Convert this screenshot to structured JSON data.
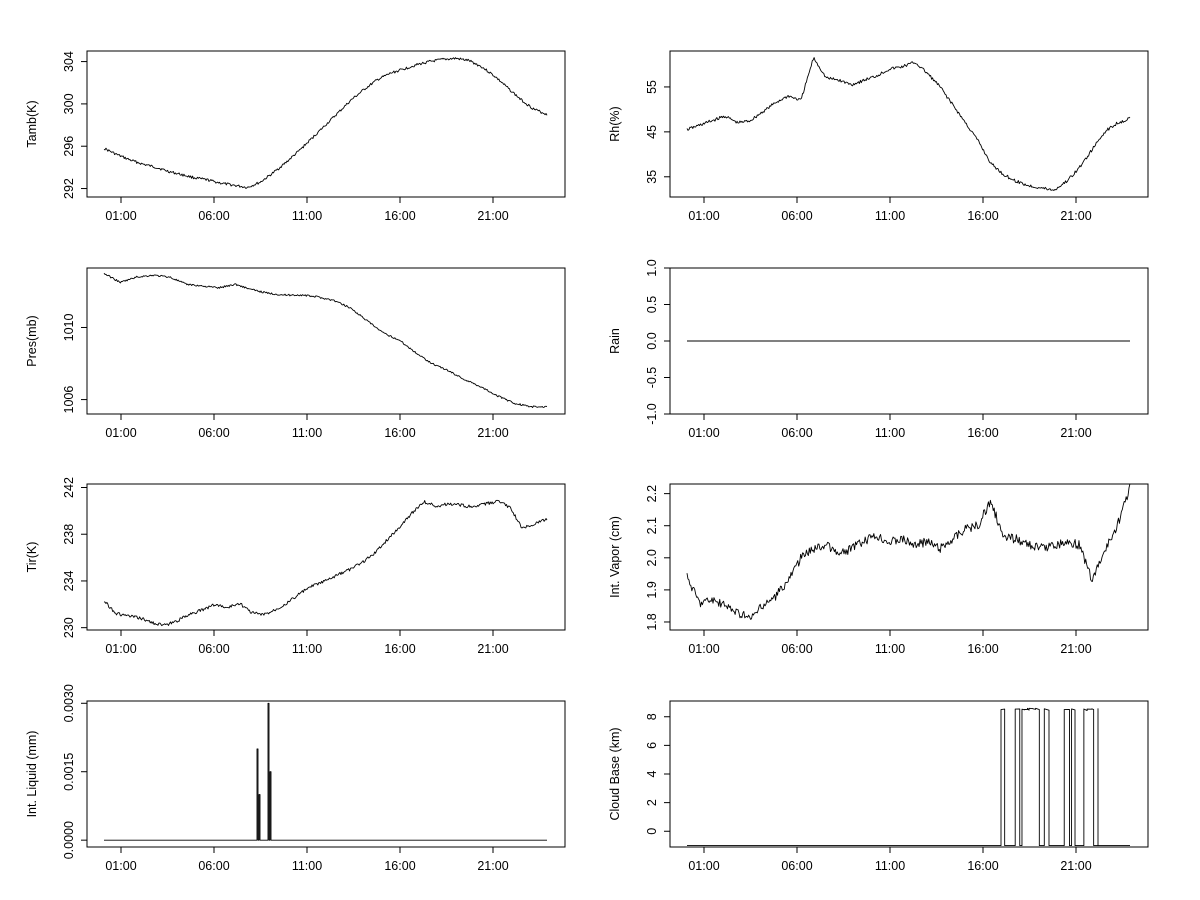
{
  "chart_data": [
    {
      "type": "line",
      "ylabel": "Tamb(K)",
      "xticks": [
        "01:00",
        "06:00",
        "11:00",
        "16:00",
        "21:00"
      ],
      "yticks": [
        "292",
        "296",
        "300",
        "304"
      ],
      "ylim": [
        291.2,
        305
      ],
      "series": [
        {
          "values": [
            295.8,
            295.2,
            294.7,
            294.3,
            294.0,
            293.6,
            293.3,
            293.0,
            292.8,
            292.5,
            292.3,
            292.1,
            292.6,
            293.5,
            294.5,
            295.6,
            296.8,
            298.0,
            299.2,
            300.4,
            301.4,
            302.3,
            302.9,
            303.3,
            303.7,
            304.0,
            304.2,
            304.3,
            304.1,
            303.5,
            302.6,
            301.5,
            300.4,
            299.5,
            299.0
          ]
        }
      ]
    },
    {
      "type": "line",
      "ylabel": "Rh(%)",
      "xticks": [
        "01:00",
        "06:00",
        "11:00",
        "16:00",
        "21:00"
      ],
      "yticks": [
        "35",
        "45",
        "55"
      ],
      "ylim": [
        30.5,
        63
      ],
      "series": [
        {
          "values": [
            45.5,
            46.5,
            47.5,
            48.5,
            47.0,
            47.5,
            49.5,
            51.5,
            53.0,
            52.0,
            61.5,
            57.0,
            56.5,
            55.5,
            56.5,
            57.5,
            59.0,
            59.5,
            60.5,
            58.0,
            55.0,
            51.0,
            47.0,
            43.0,
            38.0,
            35.5,
            34.0,
            33.0,
            32.5,
            32.0,
            34.0,
            37.0,
            41.0,
            45.0,
            47.0,
            48.0
          ]
        }
      ]
    },
    {
      "type": "line",
      "ylabel": "Pres(mb)",
      "xticks": [
        "01:00",
        "06:00",
        "11:00",
        "16:00",
        "21:00"
      ],
      "yticks": [
        "1006",
        "1010"
      ],
      "ylim": [
        1005.2,
        1013.3
      ],
      "series": [
        {
          "values": [
            1013.0,
            1012.5,
            1012.8,
            1012.9,
            1012.8,
            1012.4,
            1012.3,
            1012.2,
            1012.4,
            1012.1,
            1011.9,
            1011.8,
            1011.8,
            1011.7,
            1011.5,
            1011.1,
            1010.4,
            1009.7,
            1009.3,
            1008.6,
            1008.0,
            1007.6,
            1007.1,
            1006.7,
            1006.2,
            1005.8,
            1005.6,
            1005.6
          ]
        }
      ]
    },
    {
      "type": "line",
      "ylabel": "Rain",
      "xticks": [
        "01:00",
        "06:00",
        "11:00",
        "16:00",
        "21:00"
      ],
      "yticks": [
        "-1.0",
        "-0.5",
        "0.0",
        "0.5",
        "1.0"
      ],
      "ylim": [
        -1.0,
        1.0
      ],
      "series": [
        {
          "values": [
            0,
            0
          ]
        }
      ]
    },
    {
      "type": "line",
      "ylabel": "Tir(K)",
      "xticks": [
        "01:00",
        "06:00",
        "11:00",
        "16:00",
        "21:00"
      ],
      "yticks": [
        "230",
        "234",
        "238",
        "242"
      ],
      "ylim": [
        229.8,
        242.3
      ],
      "series": [
        {
          "values": [
            232.3,
            231.2,
            231.0,
            230.8,
            230.4,
            230.2,
            230.6,
            231.2,
            231.5,
            232.0,
            231.7,
            232.1,
            231.3,
            231.1,
            231.6,
            232.2,
            233.0,
            233.6,
            234.0,
            234.5,
            235.0,
            235.6,
            236.4,
            237.5,
            238.6,
            239.8,
            240.8,
            240.4,
            240.6,
            240.5,
            240.3,
            240.6,
            240.8,
            240.3,
            238.5,
            238.9,
            239.3
          ]
        }
      ]
    },
    {
      "type": "line",
      "ylabel": "Int. Vapor (cm)",
      "xticks": [
        "01:00",
        "06:00",
        "11:00",
        "16:00",
        "21:00"
      ],
      "yticks": [
        "1.8",
        "1.9",
        "2.0",
        "2.1",
        "2.2"
      ],
      "ylim": [
        1.775,
        2.23
      ],
      "series": [
        {
          "values": [
            1.94,
            1.86,
            1.87,
            1.85,
            1.83,
            1.81,
            1.85,
            1.88,
            1.93,
            2.0,
            2.03,
            2.04,
            2.01,
            2.03,
            2.05,
            2.07,
            2.05,
            2.06,
            2.04,
            2.05,
            2.03,
            2.06,
            2.09,
            2.1,
            2.18,
            2.06,
            2.06,
            2.04,
            2.03,
            2.04,
            2.05,
            2.04,
            1.93,
            2.02,
            2.1,
            2.22
          ]
        }
      ]
    },
    {
      "type": "line",
      "ylabel": "Int. Liquid (mm)",
      "xticks": [
        "01:00",
        "06:00",
        "11:00",
        "16:00",
        "21:00"
      ],
      "yticks": [
        "0.0000",
        "0.0015",
        "0.0030"
      ],
      "ylim": [
        -0.00015,
        0.00305
      ],
      "series": [
        {
          "values": [
            0,
            0,
            0.002,
            0.001,
            0,
            0.003,
            0.0015,
            0,
            0
          ]
        }
      ]
    },
    {
      "type": "line",
      "ylabel": "Cloud Base (km)",
      "xticks": [
        "01:00",
        "06:00",
        "11:00",
        "16:00",
        "21:00"
      ],
      "yticks": [
        "0",
        "2",
        "4",
        "6",
        "8"
      ],
      "ylim": [
        -1.1,
        9.1
      ],
      "series": [
        {
          "values": [
            -1,
            -1,
            8.5,
            -1,
            8.5
          ]
        }
      ]
    }
  ]
}
